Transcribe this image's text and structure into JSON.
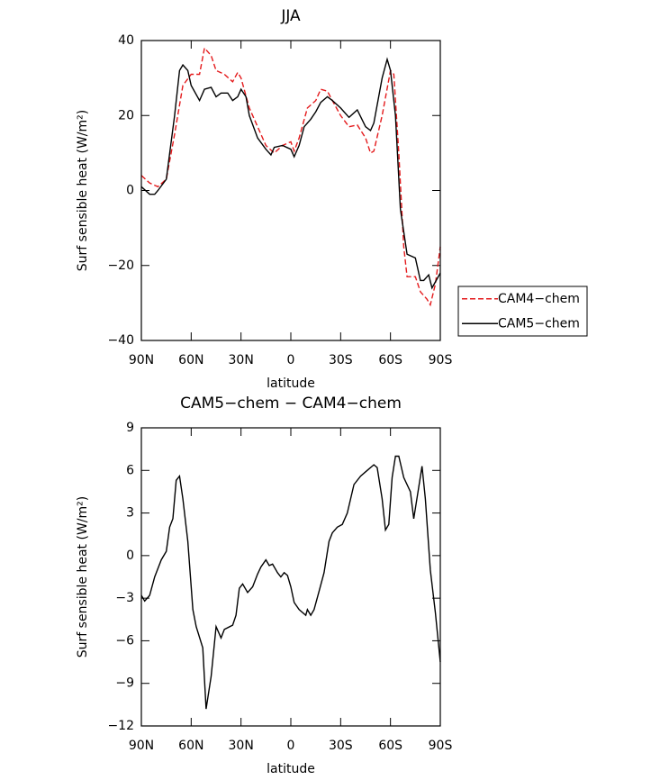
{
  "chart_data": [
    {
      "type": "line",
      "title": "JJA",
      "xlabel": "latitude",
      "ylabel": "Surf sensible heat (W/m²)",
      "xlim": [
        90,
        -90
      ],
      "xticks": [
        {
          "value": 90,
          "label": "90N"
        },
        {
          "value": 60,
          "label": "60N"
        },
        {
          "value": 30,
          "label": "30N"
        },
        0,
        {
          "value": -30,
          "label": "30S"
        },
        {
          "value": -60,
          "label": "60S"
        },
        {
          "value": -90,
          "label": "90S"
        }
      ],
      "ylim": [
        -40,
        40
      ],
      "yticks": [
        {
          "value": -40,
          "label": "−40"
        },
        {
          "value": -20,
          "label": "−20"
        },
        0,
        20,
        40
      ],
      "legend": "right",
      "series": [
        {
          "name": "CAM4−chem",
          "color": "#e41a1c",
          "dash": true,
          "x": [
            90,
            85,
            80,
            75,
            70,
            65,
            60,
            55,
            52,
            48,
            45,
            40,
            35,
            32,
            30,
            25,
            20,
            15,
            10,
            5,
            0,
            -2,
            -5,
            -10,
            -15,
            -18,
            -22,
            -25,
            -30,
            -35,
            -40,
            -45,
            -48,
            -50,
            -55,
            -60,
            -62,
            -65,
            -68,
            -70,
            -75,
            -78,
            -82,
            -84,
            -87,
            -90
          ],
          "values": [
            4,
            2,
            1,
            3,
            15,
            28,
            31,
            31,
            38,
            36,
            32,
            31,
            29,
            31.5,
            30,
            22,
            17,
            12,
            10,
            12,
            13,
            10.5,
            14,
            22,
            24,
            27,
            26.5,
            24,
            20,
            17,
            17.5,
            14,
            10,
            10.5,
            20,
            32,
            31,
            10,
            -15,
            -23,
            -23,
            -27,
            -29,
            -30.5,
            -25,
            -15
          ]
        },
        {
          "name": "CAM5−chem",
          "color": "#000000",
          "dash": false,
          "x": [
            90,
            85,
            82,
            80,
            75,
            70,
            67,
            65,
            62,
            60,
            55,
            52,
            48,
            45,
            42,
            38,
            35,
            32,
            30,
            27,
            25,
            20,
            15,
            12,
            10,
            5,
            0,
            -2,
            -5,
            -8,
            -12,
            -15,
            -18,
            -22,
            -25,
            -30,
            -35,
            -40,
            -45,
            -48,
            -50,
            -55,
            -58,
            -60,
            -63,
            -66,
            -70,
            -75,
            -78,
            -80,
            -83,
            -85,
            -90
          ],
          "values": [
            1,
            -1,
            -1,
            0,
            3,
            20,
            32,
            33.5,
            32,
            28,
            24,
            27,
            27.5,
            25,
            26,
            26,
            24,
            25,
            27,
            25,
            20,
            14,
            11,
            9.5,
            11.5,
            12,
            11,
            9,
            12,
            17,
            19,
            21,
            23.5,
            25,
            24,
            22,
            19.5,
            21.5,
            17,
            16,
            18,
            30,
            35,
            32,
            20,
            -5,
            -17,
            -18,
            -24,
            -24,
            -22.5,
            -26,
            -22
          ]
        }
      ]
    },
    {
      "type": "line",
      "title": "CAM5−chem − CAM4−chem",
      "xlabel": "latitude",
      "ylabel": "Surf sensible heat (W/m²)",
      "xlim": [
        90,
        -90
      ],
      "xticks": [
        {
          "value": 90,
          "label": "90N"
        },
        {
          "value": 60,
          "label": "60N"
        },
        {
          "value": 30,
          "label": "30N"
        },
        0,
        {
          "value": -30,
          "label": "30S"
        },
        {
          "value": -60,
          "label": "60S"
        },
        {
          "value": -90,
          "label": "90S"
        }
      ],
      "ylim": [
        -12,
        9
      ],
      "yticks": [
        {
          "value": -12,
          "label": "−12"
        },
        {
          "value": -9,
          "label": "−9"
        },
        {
          "value": -6,
          "label": "−6"
        },
        {
          "value": -3,
          "label": "−3"
        },
        0,
        3,
        6,
        9
      ],
      "series": [
        {
          "color": "#000000",
          "dash": false,
          "x": [
            90,
            88,
            85,
            82,
            78,
            75,
            73,
            71,
            69,
            67,
            65,
            62,
            59,
            57,
            53,
            51,
            48,
            45,
            42,
            40,
            35,
            33,
            31,
            29,
            26,
            23,
            20,
            18,
            15,
            13,
            11,
            8,
            6,
            4,
            2,
            0,
            -2,
            -5,
            -9,
            -10,
            -12,
            -14,
            -17,
            -20,
            -23,
            -25,
            -28,
            -31,
            -34,
            -38,
            -42,
            -46,
            -50,
            -52,
            -55,
            -57,
            -59,
            -61,
            -63,
            -65,
            -68,
            -72,
            -74,
            -77,
            -79,
            -81,
            -84,
            -87,
            -90
          ],
          "values": [
            -2.8,
            -3.2,
            -2.8,
            -1.5,
            -0.3,
            0.3,
            2,
            2.6,
            5.3,
            5.6,
            4,
            1,
            -3.8,
            -5,
            -6.5,
            -10.8,
            -8.5,
            -5,
            -5.8,
            -5.2,
            -4.9,
            -4.2,
            -2.3,
            -2,
            -2.6,
            -2.2,
            -1.3,
            -0.8,
            -0.3,
            -0.7,
            -0.6,
            -1.2,
            -1.5,
            -1.2,
            -1.4,
            -2.2,
            -3.3,
            -3.8,
            -4.2,
            -3.8,
            -4.2,
            -3.8,
            -2.5,
            -1.2,
            1,
            1.6,
            2,
            2.2,
            3,
            5,
            5.6,
            6,
            6.4,
            6.2,
            4,
            1.8,
            2.2,
            5.5,
            7,
            7,
            5.5,
            4.5,
            2.6,
            4.8,
            6.3,
            4,
            -1,
            -4,
            -7.5
          ]
        }
      ]
    }
  ]
}
